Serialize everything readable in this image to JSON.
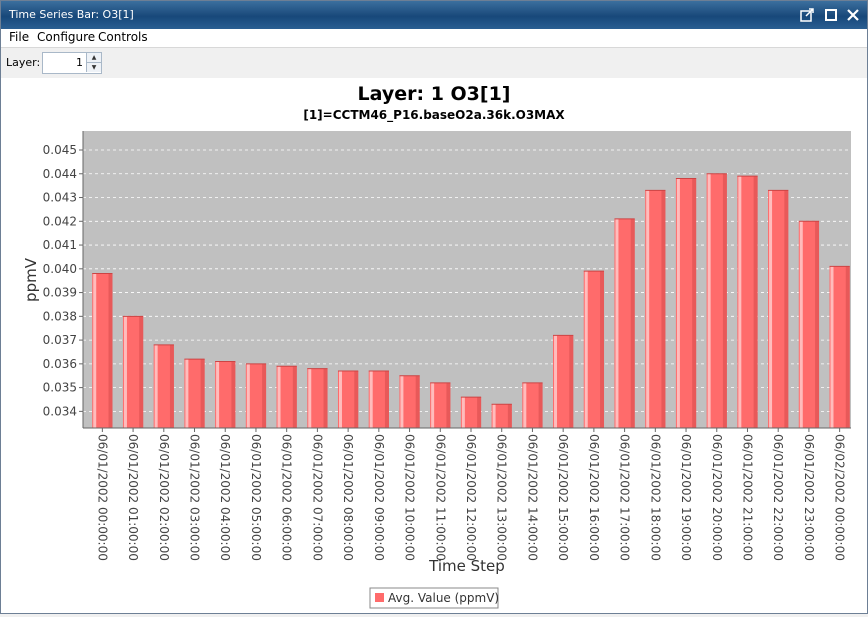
{
  "window": {
    "title": "Time Series Bar: O3[1]",
    "controls": [
      "pin-icon",
      "maximize-icon",
      "close-icon"
    ]
  },
  "menu": {
    "items": [
      "File",
      "Configure",
      "Controls"
    ]
  },
  "toolbar": {
    "layer_label": "Layer:",
    "layer_value": "1"
  },
  "colors": {
    "bar": "#ff6b6b",
    "plot_bg": "#c0c0c0",
    "gridline": "#ffffff"
  },
  "chart_data": {
    "type": "bar",
    "title": "Layer: 1 O3[1]",
    "subtitle": "[1]=CCTM46_P16.baseO2a.36k.O3MAX",
    "xlabel": "Time Step",
    "ylabel": "ppmV",
    "ylim": [
      0.0333,
      0.0458
    ],
    "yticks": [
      "0.034",
      "0.035",
      "0.036",
      "0.037",
      "0.038",
      "0.039",
      "0.040",
      "0.041",
      "0.042",
      "0.043",
      "0.044",
      "0.045"
    ],
    "grid": true,
    "legend": "bottom-center",
    "categories": [
      "06/01/2002 00:00:00",
      "06/01/2002 01:00:00",
      "06/01/2002 02:00:00",
      "06/01/2002 03:00:00",
      "06/01/2002 04:00:00",
      "06/01/2002 05:00:00",
      "06/01/2002 06:00:00",
      "06/01/2002 07:00:00",
      "06/01/2002 08:00:00",
      "06/01/2002 09:00:00",
      "06/01/2002 10:00:00",
      "06/01/2002 11:00:00",
      "06/01/2002 12:00:00",
      "06/01/2002 13:00:00",
      "06/01/2002 14:00:00",
      "06/01/2002 15:00:00",
      "06/01/2002 16:00:00",
      "06/01/2002 17:00:00",
      "06/01/2002 18:00:00",
      "06/01/2002 19:00:00",
      "06/01/2002 20:00:00",
      "06/01/2002 21:00:00",
      "06/01/2002 22:00:00",
      "06/01/2002 23:00:00",
      "06/02/2002 00:00:00"
    ],
    "series": [
      {
        "name": "Avg. Value (ppmV)",
        "values": [
          0.0398,
          0.038,
          0.0368,
          0.0362,
          0.0361,
          0.036,
          0.0359,
          0.0358,
          0.0357,
          0.0357,
          0.0355,
          0.0352,
          0.0346,
          0.0343,
          0.0352,
          0.0372,
          0.0399,
          0.0421,
          0.0433,
          0.0438,
          0.044,
          0.0439,
          0.0433,
          0.042,
          0.0401
        ]
      }
    ]
  }
}
